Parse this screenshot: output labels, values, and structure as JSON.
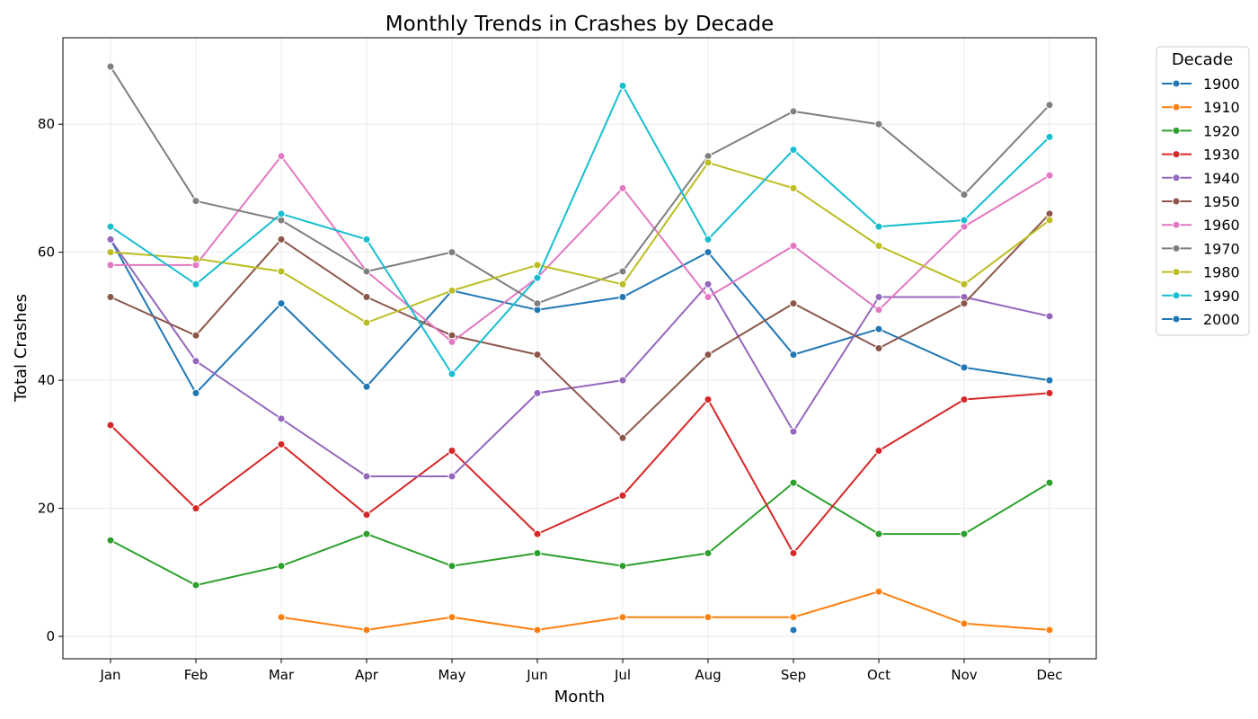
{
  "chart_data": {
    "type": "line",
    "title": "Monthly Trends in Crashes by Decade",
    "xlabel": "Month",
    "ylabel": "Total Crashes",
    "categories": [
      "Jan",
      "Feb",
      "Mar",
      "Apr",
      "May",
      "Jun",
      "Jul",
      "Aug",
      "Sep",
      "Oct",
      "Nov",
      "Dec"
    ],
    "ylim": [
      -3.5,
      93.5
    ],
    "yticks": [
      0,
      20,
      40,
      60,
      80
    ],
    "grid": true,
    "legend_title": "Decade",
    "legend_position": "outside-right",
    "series": [
      {
        "name": "1900",
        "color": "#1f77b4",
        "values": [
          62,
          38,
          52,
          39,
          54,
          51,
          53,
          60,
          44,
          48,
          42,
          40
        ]
      },
      {
        "name": "1910",
        "color": "#ff7f0e",
        "values": [
          null,
          null,
          3,
          1,
          3,
          1,
          3,
          3,
          3,
          7,
          2,
          1
        ]
      },
      {
        "name": "1920",
        "color": "#2ca02c",
        "values": [
          15,
          8,
          11,
          16,
          11,
          13,
          11,
          13,
          24,
          16,
          16,
          24
        ]
      },
      {
        "name": "1930",
        "color": "#d62728",
        "values": [
          33,
          20,
          30,
          19,
          29,
          16,
          22,
          37,
          13,
          29,
          37,
          38
        ]
      },
      {
        "name": "1940",
        "color": "#9467bd",
        "values": [
          62,
          43,
          34,
          25,
          25,
          38,
          40,
          55,
          32,
          53,
          53,
          50
        ]
      },
      {
        "name": "1950",
        "color": "#8c564b",
        "values": [
          53,
          47,
          62,
          53,
          47,
          44,
          31,
          44,
          52,
          45,
          52,
          66
        ]
      },
      {
        "name": "1960",
        "color": "#e377c2",
        "values": [
          58,
          58,
          75,
          57,
          46,
          56,
          70,
          53,
          61,
          51,
          64,
          72
        ]
      },
      {
        "name": "1970",
        "color": "#7f7f7f",
        "values": [
          89,
          68,
          65,
          57,
          60,
          52,
          57,
          75,
          82,
          80,
          69,
          83
        ]
      },
      {
        "name": "1980",
        "color": "#bcbd22",
        "values": [
          60,
          59,
          57,
          49,
          54,
          58,
          55,
          74,
          70,
          61,
          55,
          65
        ]
      },
      {
        "name": "1990",
        "color": "#17becf",
        "values": [
          64,
          55,
          66,
          62,
          41,
          56,
          86,
          62,
          76,
          64,
          65,
          78
        ]
      },
      {
        "name": "2000",
        "color": "#1f77b4",
        "values": [
          null,
          null,
          null,
          null,
          null,
          null,
          null,
          null,
          1,
          null,
          null,
          null
        ]
      }
    ]
  }
}
